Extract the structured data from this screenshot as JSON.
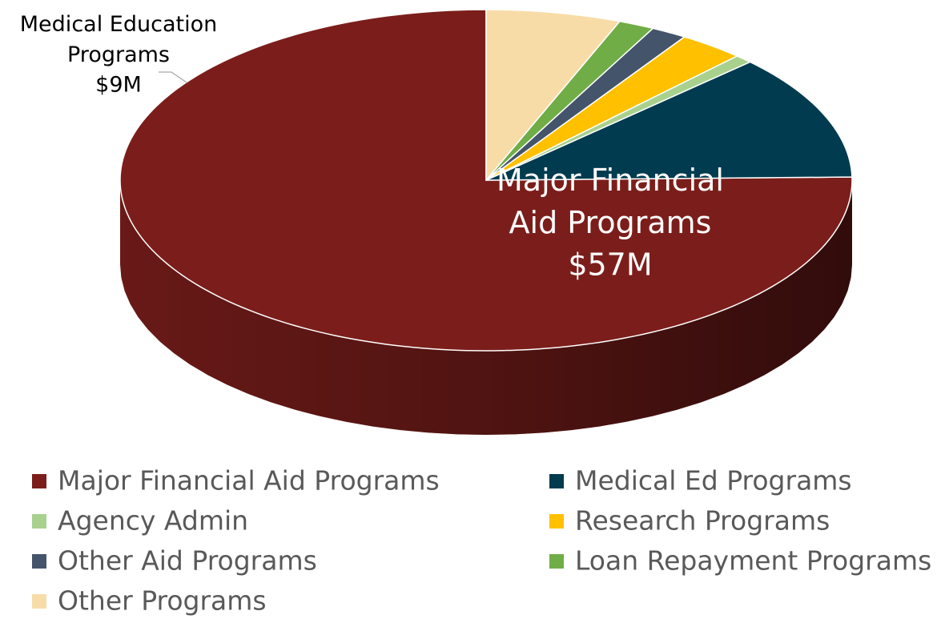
{
  "chart_data": {
    "type": "pie",
    "categories": [
      "Major Financial Aid Programs",
      "Medical Ed Programs",
      "Agency Admin",
      "Research Programs",
      "Other Aid Programs",
      "Loan Repayment Programs",
      "Other Programs"
    ],
    "values": [
      57,
      9,
      0.6,
      2.2,
      1.2,
      1.2,
      4.5
    ],
    "value_labels": [
      "$57M",
      "$9M",
      null,
      null,
      null,
      null,
      null
    ],
    "slice_names": [
      "Major Financial Aid Programs",
      "Medical Education Programs",
      null,
      null,
      null,
      null,
      null
    ],
    "colors": [
      "#7b1e1b",
      "#003b4f",
      "#a9d18e",
      "#ffc000",
      "#44546a",
      "#70ad47",
      "#f8dca8"
    ],
    "direction": "counterclockwise",
    "legend": "bottom"
  }
}
